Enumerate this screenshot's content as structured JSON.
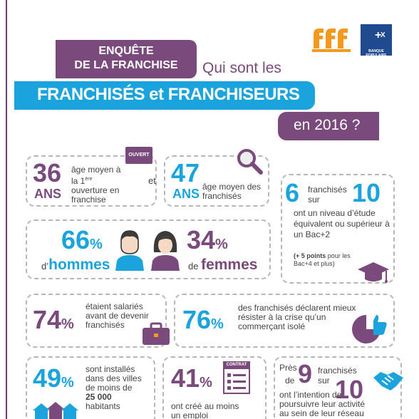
{
  "header": {
    "line1": "ENQUÊTE",
    "line2": "DE LA FRANCHISE",
    "question": "Qui sont les",
    "banner": "FRANCHISÉS et FRANCHISEURS",
    "year": "en 2016 ?",
    "bank_logo_text": "BANQUE POPULAIRE"
  },
  "colors": {
    "purple": "#7a4a7d",
    "blue": "#1aa3dc",
    "orange": "#f39a1e",
    "gray": "#b7b7b7"
  },
  "stats": {
    "age_first": {
      "value": "36",
      "unit": "ANS",
      "text_a": "âge moyen à la 1",
      "sup": "ère",
      "text_b": " ouverture en franchise",
      "sign": "OUVERT"
    },
    "joiner": "et",
    "age_avg": {
      "value": "47",
      "unit": "ANS",
      "text": "âge moyen des franchisés"
    },
    "education": {
      "num": "6",
      "text1": "franchisés",
      "text2": "sur",
      "den": "10",
      "text": "ont un niveau d’étude équivalent ou supérieur à un Bac+2",
      "note_bold": "(+ 5 points",
      "note": " pour les Bac+4 et plus)"
    },
    "men": {
      "value": "66",
      "pct": "%",
      "prefix": "d’",
      "label": "hommes"
    },
    "women": {
      "value": "34",
      "pct": "%",
      "prefix": "de ",
      "label": "femmes"
    },
    "employees": {
      "value": "74",
      "pct": "%",
      "text": "étaient salariés avant de devenir franchisés"
    },
    "crisis": {
      "value": "76",
      "pct": "%",
      "text": "des franchisés déclarent mieux résister à la crise qu’un commerçant isolé"
    },
    "towns": {
      "value": "49",
      "pct": "%",
      "text": "sont installés dans des villes de moins de",
      "bold": "25 000",
      "tail": "habitants"
    },
    "jobs": {
      "value": "41",
      "pct": "%",
      "text": "ont créé au moins un emploi",
      "sign": "CONTRAT"
    },
    "network": {
      "lead1": "Près",
      "lead2": "de",
      "num": "9",
      "text1": "franchisés",
      "text2": "sur",
      "den": "10",
      "text": "ont l’intention de poursuivre leur activité au sein de leur réseau"
    }
  }
}
